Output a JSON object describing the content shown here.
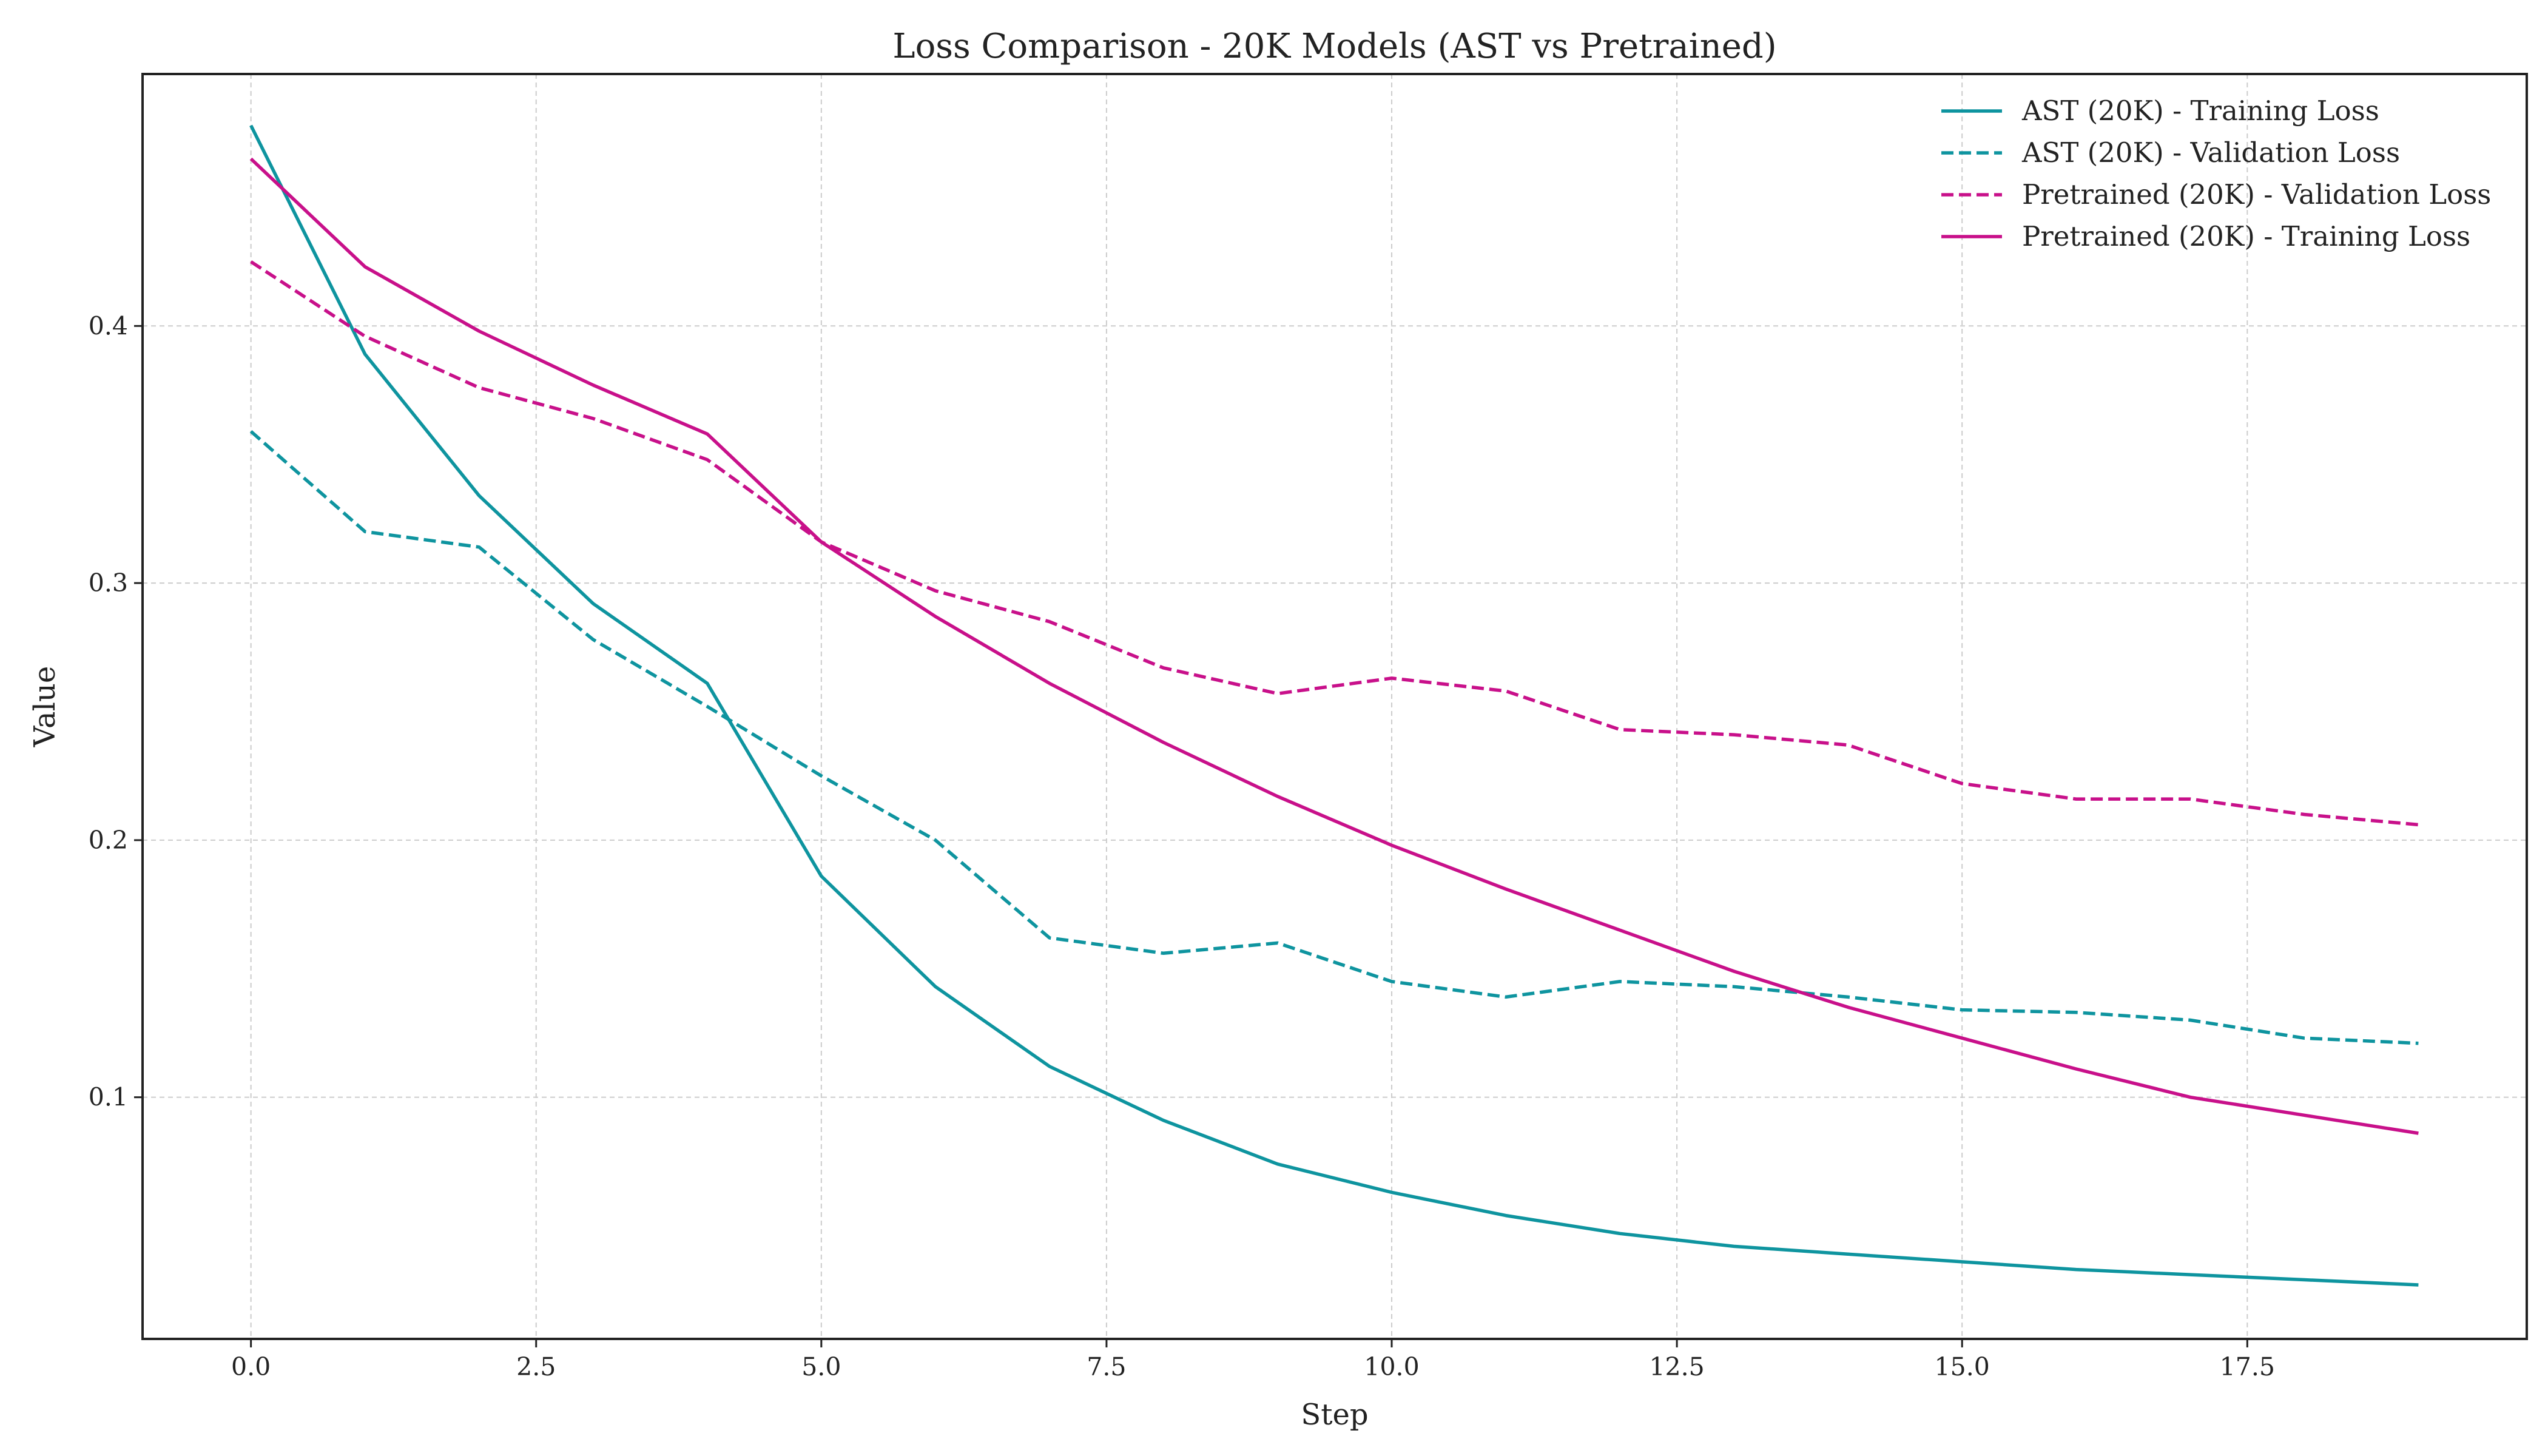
{
  "chart_data": {
    "type": "line",
    "title": "Loss Comparison - 20K Models (AST vs Pretrained)",
    "xlabel": "Step",
    "ylabel": "Value",
    "xlim": [
      -0.95,
      19.95
    ],
    "ylim": [
      0.006,
      0.498
    ],
    "x_ticks": [
      0.0,
      2.5,
      5.0,
      7.5,
      10.0,
      12.5,
      15.0,
      17.5
    ],
    "x_tick_labels": [
      "0.0",
      "2.5",
      "5.0",
      "7.5",
      "10.0",
      "12.5",
      "15.0",
      "17.5"
    ],
    "y_ticks": [
      0.1,
      0.2,
      0.3,
      0.4
    ],
    "y_tick_labels": [
      "0.1",
      "0.2",
      "0.3",
      "0.4"
    ],
    "grid": true,
    "legend_position": "top-right",
    "x": [
      0,
      1,
      2,
      3,
      4,
      5,
      6,
      7,
      8,
      9,
      10,
      11,
      12,
      13,
      14,
      15,
      16,
      17,
      18,
      19
    ],
    "series": [
      {
        "name": "AST (20K) - Training Loss",
        "color": "#0e949f",
        "style": "solid",
        "values": [
          0.478,
          0.389,
          0.334,
          0.292,
          0.261,
          0.186,
          0.143,
          0.112,
          0.091,
          0.074,
          0.063,
          0.054,
          0.047,
          0.042,
          0.039,
          0.036,
          0.033,
          0.031,
          0.029,
          0.027
        ]
      },
      {
        "name": "AST (20K) - Validation Loss",
        "color": "#0e949f",
        "style": "dashed",
        "values": [
          0.359,
          0.32,
          0.314,
          0.278,
          0.252,
          0.225,
          0.2,
          0.162,
          0.156,
          0.16,
          0.145,
          0.139,
          0.145,
          0.143,
          0.139,
          0.134,
          0.133,
          0.13,
          0.123,
          0.121
        ]
      },
      {
        "name": "Pretrained (20K) - Validation Loss",
        "color": "#c8108a",
        "style": "dashed",
        "values": [
          0.425,
          0.396,
          0.376,
          0.364,
          0.348,
          0.316,
          0.297,
          0.285,
          0.267,
          0.257,
          0.263,
          0.258,
          0.243,
          0.241,
          0.237,
          0.222,
          0.216,
          0.216,
          0.21,
          0.206
        ]
      },
      {
        "name": "Pretrained (20K) - Training Loss",
        "color": "#c8108a",
        "style": "solid",
        "values": [
          0.465,
          0.423,
          0.398,
          0.377,
          0.358,
          0.316,
          0.287,
          0.261,
          0.238,
          0.217,
          0.198,
          0.181,
          0.165,
          0.149,
          0.135,
          0.123,
          0.111,
          0.1,
          0.093,
          0.086
        ]
      }
    ]
  }
}
